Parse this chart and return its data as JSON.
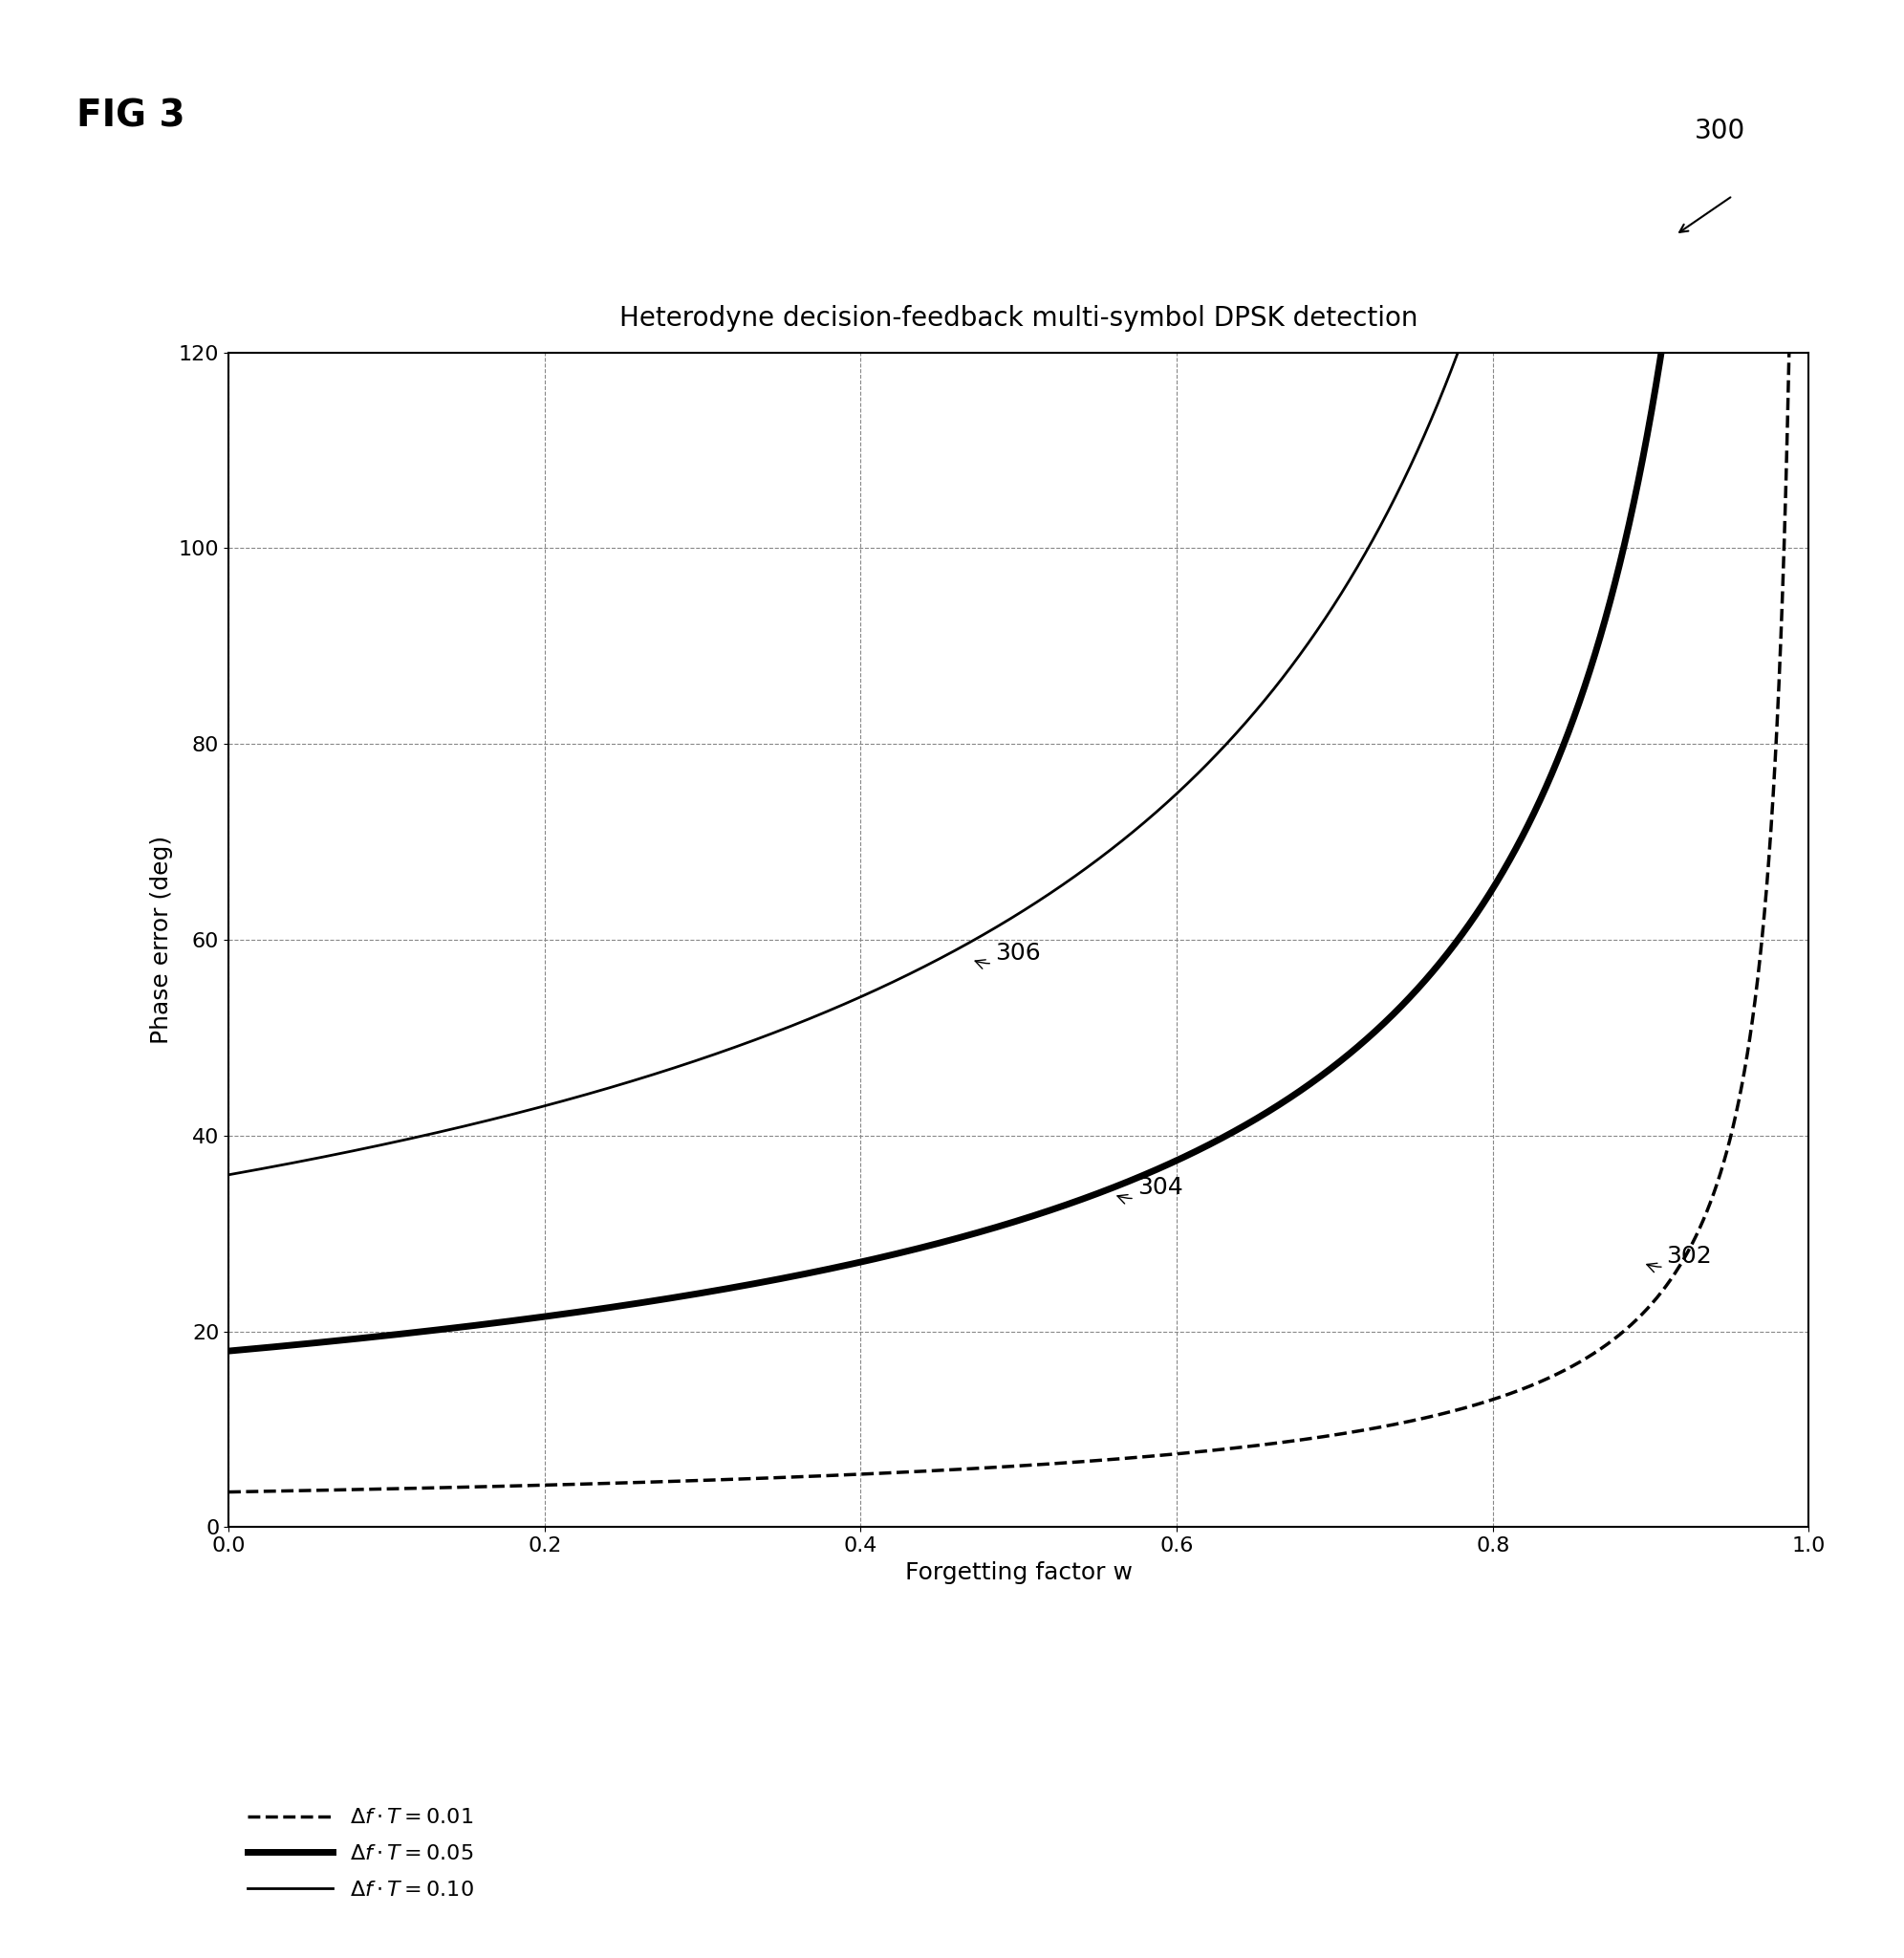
{
  "title": "Heterodyne decision-feedback multi-symbol DPSK detection",
  "xlabel": "Forgetting factor w",
  "ylabel": "Phase error (deg)",
  "xlim": [
    0.0,
    1.0
  ],
  "ylim": [
    0.0,
    120.0
  ],
  "xticks": [
    0.0,
    0.2,
    0.4,
    0.6,
    0.8,
    1.0
  ],
  "yticks": [
    0,
    20,
    40,
    60,
    80,
    100,
    120
  ],
  "fig_label": "FIG 3",
  "fig_number": "300",
  "delta_f_T_values": [
    0.01,
    0.05,
    0.1
  ],
  "background_color": "#ffffff",
  "line_color": "#000000",
  "grid_color": "#888888",
  "title_fontsize": 20,
  "label_fontsize": 18,
  "tick_fontsize": 16,
  "annotation_fontsize": 18,
  "fig_label_fontsize": 28,
  "fig_number_fontsize": 20
}
